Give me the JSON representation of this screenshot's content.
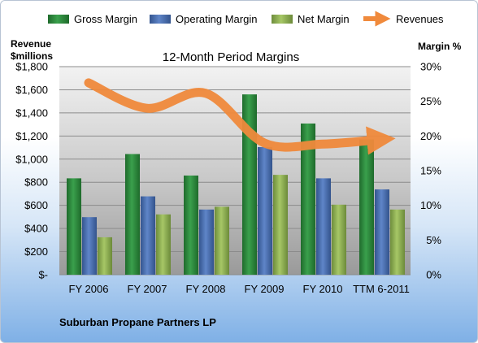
{
  "chart_data": {
    "type": "bar",
    "title": "12-Month Period Margins",
    "ylabel_left": [
      "Revenue",
      "$millions"
    ],
    "ylabel_right": "Margin %",
    "categories": [
      "FY 2006",
      "FY 2007",
      "FY 2008",
      "FY 2009",
      "FY 2010",
      "TTM 6-2011"
    ],
    "ylim_left": [
      0,
      1800
    ],
    "ylim_right": [
      0,
      30
    ],
    "left_ticks": [
      "$-",
      "$200",
      "$400",
      "$600",
      "$800",
      "$1,000",
      "$1,200",
      "$1,400",
      "$1,600",
      "$1,800"
    ],
    "right_ticks": [
      "0%",
      "5%",
      "10%",
      "15%",
      "20%",
      "25%",
      "30%"
    ],
    "series": [
      {
        "name": "Gross Margin",
        "axis": "right",
        "color": "#2e8b3e",
        "values": [
          13.9,
          17.4,
          14.3,
          26.0,
          21.8,
          19.5
        ]
      },
      {
        "name": "Operating Margin",
        "axis": "right",
        "color": "#4a6fb5",
        "values": [
          8.3,
          11.3,
          9.4,
          18.4,
          13.9,
          12.3
        ]
      },
      {
        "name": "Net Margin",
        "axis": "right",
        "color": "#8fb256",
        "values": [
          5.4,
          8.7,
          9.8,
          14.4,
          10.1,
          9.4
        ]
      }
    ],
    "revenue": {
      "name": "Revenues",
      "axis": "left",
      "color": "#f08a3c",
      "values": [
        1660,
        1440,
        1570,
        1140,
        1130,
        1170
      ]
    },
    "grid": true,
    "legend_position": "top"
  },
  "footer": {
    "company": "Suburban Propane Partners LP"
  }
}
